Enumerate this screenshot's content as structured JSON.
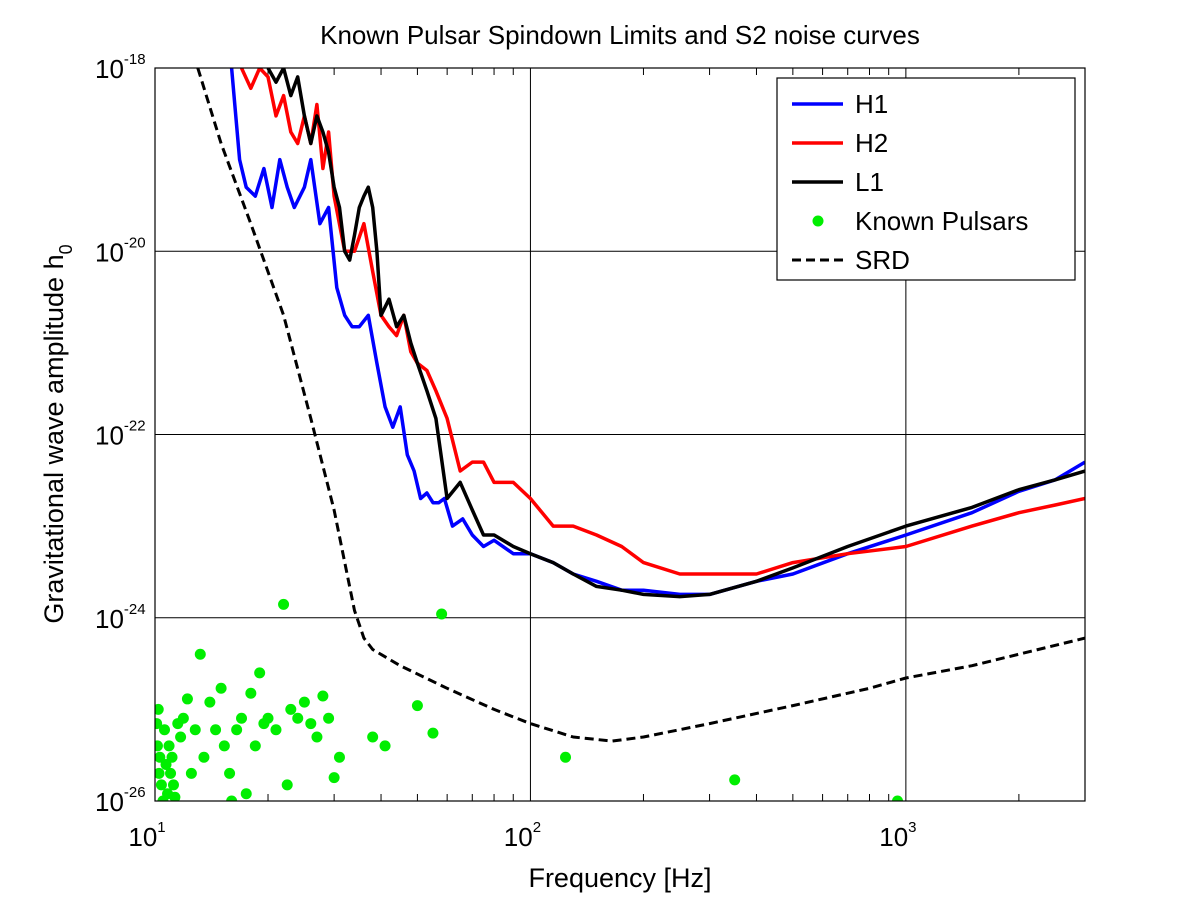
{
  "chart_data": {
    "type": "line",
    "title": "Known Pulsar Spindown Limits and S2 noise curves",
    "xlabel": "Frequency [Hz]",
    "ylabel": "Gravitational wave amplitude h",
    "ylabel_subscript": "0",
    "x_scale": "log",
    "y_scale": "log",
    "xlim": [
      10,
      3000
    ],
    "ylim": [
      1e-26,
      1e-18
    ],
    "grid": true,
    "legend_position": "top-right",
    "x_ticks": [
      {
        "base": "10",
        "exp": "1",
        "value": 10
      },
      {
        "base": "10",
        "exp": "2",
        "value": 100
      },
      {
        "base": "10",
        "exp": "3",
        "value": 1000
      }
    ],
    "y_ticks": [
      {
        "base": "10",
        "exp": "-18",
        "value": 1e-18
      },
      {
        "base": "10",
        "exp": "-20",
        "value": 1e-20
      },
      {
        "base": "10",
        "exp": "-22",
        "value": 1e-22
      },
      {
        "base": "10",
        "exp": "-24",
        "value": 1e-24
      },
      {
        "base": "10",
        "exp": "-26",
        "value": 1e-26
      }
    ],
    "series": [
      {
        "name": "H1",
        "color": "#0000ff",
        "style": "solid",
        "x": [
          16,
          16.8,
          17.5,
          18.5,
          19.5,
          20.5,
          21.5,
          22.5,
          23.5,
          25,
          26,
          27.5,
          29,
          30.5,
          32,
          33.5,
          35,
          37,
          39,
          41,
          43,
          45,
          47,
          49,
          51,
          53,
          55,
          57,
          59,
          62,
          66,
          70,
          75,
          80,
          90,
          100,
          115,
          130,
          150,
          175,
          200,
          250,
          300,
          400,
          500,
          700,
          1000,
          1500,
          2000,
          2500,
          3000
        ],
        "y": [
          1e-18,
          1e-19,
          5e-20,
          4e-20,
          8e-20,
          3e-20,
          1e-19,
          5e-20,
          3e-20,
          5e-20,
          1e-19,
          2e-20,
          3e-20,
          4e-21,
          2e-21,
          1.5e-21,
          1.5e-21,
          2e-21,
          6e-22,
          2e-22,
          1.2e-22,
          2e-22,
          6e-23,
          4e-23,
          2e-23,
          2.3e-23,
          1.8e-23,
          1.8e-23,
          2e-23,
          1e-23,
          1.2e-23,
          8e-24,
          6e-24,
          7e-24,
          5e-24,
          5e-24,
          4e-24,
          3e-24,
          2.5e-24,
          2e-24,
          2e-24,
          1.8e-24,
          1.8e-24,
          2.5e-24,
          3e-24,
          5e-24,
          8e-24,
          1.4e-23,
          2.4e-23,
          3.2e-23,
          5e-23
        ]
      },
      {
        "name": "H2",
        "color": "#ff0000",
        "style": "solid",
        "x": [
          17,
          18,
          19,
          20,
          21,
          22,
          23,
          24,
          25,
          26,
          27,
          28,
          29,
          30,
          32,
          34,
          36,
          38,
          40,
          42,
          44,
          46,
          48,
          50,
          53,
          56,
          60,
          65,
          70,
          75,
          80,
          90,
          100,
          115,
          130,
          150,
          175,
          200,
          250,
          300,
          400,
          500,
          700,
          1000,
          1500,
          2000,
          2500,
          3000
        ],
        "y": [
          1e-18,
          6e-19,
          1e-18,
          8e-19,
          3e-19,
          5e-19,
          2e-19,
          1.5e-19,
          3e-19,
          1.5e-19,
          4e-19,
          8e-20,
          2e-19,
          4e-20,
          1e-20,
          1e-20,
          2e-20,
          6e-21,
          2e-21,
          1.5e-21,
          1.2e-21,
          2e-21,
          8e-22,
          6e-22,
          5e-22,
          3e-22,
          1.5e-22,
          4e-23,
          5e-23,
          5e-23,
          3e-23,
          3e-23,
          2e-23,
          1e-23,
          1e-23,
          8e-24,
          6e-24,
          4e-24,
          3e-24,
          3e-24,
          3e-24,
          4e-24,
          5e-24,
          6e-24,
          1e-23,
          1.4e-23,
          1.7e-23,
          2e-23
        ]
      },
      {
        "name": "L1",
        "color": "#000000",
        "style": "solid",
        "x": [
          20,
          21,
          22,
          23,
          24,
          25,
          26,
          27,
          28,
          29,
          30,
          31,
          32,
          33,
          34,
          35,
          36,
          37,
          38,
          39,
          40,
          42,
          44,
          46,
          48,
          50,
          53,
          56,
          60,
          65,
          70,
          75,
          80,
          90,
          100,
          115,
          130,
          150,
          175,
          200,
          250,
          300,
          400,
          500,
          700,
          1000,
          1500,
          2000,
          2500,
          3000
        ],
        "y": [
          1e-18,
          7e-19,
          1e-18,
          5e-19,
          8e-19,
          3e-19,
          1.5e-19,
          3e-19,
          2e-19,
          1.2e-19,
          5e-20,
          3e-20,
          1e-20,
          8e-21,
          1.5e-20,
          3e-20,
          4e-20,
          5e-20,
          3e-20,
          1e-20,
          2e-21,
          3e-21,
          1.5e-21,
          2e-21,
          1e-21,
          6e-22,
          3e-22,
          1.5e-22,
          2e-23,
          3e-23,
          1.5e-23,
          8e-24,
          8e-24,
          6e-24,
          5e-24,
          4e-24,
          3e-24,
          2.2e-24,
          2e-24,
          1.8e-24,
          1.7e-24,
          1.8e-24,
          2.5e-24,
          3.5e-24,
          6e-24,
          1e-23,
          1.6e-23,
          2.5e-23,
          3.2e-23,
          4e-23
        ]
      },
      {
        "name": "Known Pulsars",
        "color": "#00ee00",
        "style": "markers",
        "x": [
          10.1,
          10.15,
          10.2,
          10.25,
          10.3,
          10.4,
          10.5,
          10.6,
          10.7,
          10.8,
          10.9,
          11.0,
          11.1,
          11.2,
          11.3,
          11.5,
          11.7,
          11.9,
          12.2,
          12.5,
          12.8,
          13.2,
          13.5,
          14.0,
          14.5,
          15.0,
          15.3,
          15.8,
          16.0,
          16.5,
          17.0,
          17.5,
          18.0,
          18.5,
          19.0,
          19.5,
          20.0,
          21.0,
          22.0,
          22.5,
          23.0,
          24.0,
          25.0,
          26.0,
          27.0,
          28.0,
          29.0,
          30.0,
          31.0,
          38.0,
          41.0,
          50.0,
          55.0,
          58.0,
          124.0,
          350.0,
          950.0
        ],
        "y": [
          7e-26,
          4e-26,
          1e-25,
          2e-26,
          3e-26,
          1.5e-26,
          1e-26,
          6e-26,
          2.5e-26,
          1.2e-26,
          4e-26,
          2e-26,
          3e-26,
          1.5e-26,
          1.1e-26,
          7e-26,
          5e-26,
          8e-26,
          1.3e-25,
          2e-26,
          6e-26,
          4e-25,
          3e-26,
          1.2e-25,
          6e-26,
          1.7e-25,
          4e-26,
          2e-26,
          1e-26,
          6e-26,
          8e-26,
          1.2e-26,
          1.5e-25,
          4e-26,
          2.5e-25,
          7e-26,
          8e-26,
          6e-26,
          1.4e-24,
          1.5e-26,
          1e-25,
          8e-26,
          1.2e-25,
          7e-26,
          5e-26,
          1.4e-25,
          8e-26,
          1.8e-26,
          3e-26,
          5e-26,
          4e-26,
          1.1e-25,
          5.5e-26,
          1.1e-24,
          3e-26,
          1.7e-26,
          1e-26
        ]
      },
      {
        "name": "SRD",
        "color": "#000000",
        "style": "dashed",
        "x": [
          13,
          15,
          18,
          22,
          26,
          30,
          34,
          36,
          38,
          45,
          60,
          80,
          100,
          130,
          165,
          200,
          300,
          500,
          800,
          1000,
          1500,
          2000,
          3000
        ],
        "y": [
          1e-18,
          1.5e-19,
          2e-20,
          2e-21,
          1.5e-22,
          1.5e-23,
          1.2e-24,
          6e-25,
          4.5e-25,
          3e-25,
          1.7e-25,
          1e-25,
          7e-26,
          5e-26,
          4.5e-26,
          5e-26,
          7e-26,
          1.1e-25,
          1.7e-25,
          2.2e-25,
          3e-25,
          4e-25,
          6e-25
        ]
      }
    ]
  }
}
